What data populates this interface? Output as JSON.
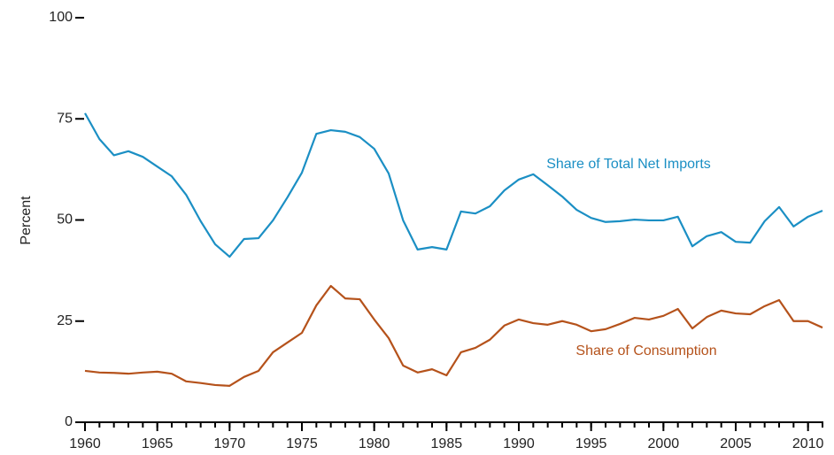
{
  "chart_data": {
    "type": "line",
    "y_label": "Percent",
    "x": [
      1960,
      1961,
      1962,
      1963,
      1964,
      1965,
      1966,
      1967,
      1968,
      1969,
      1970,
      1971,
      1972,
      1973,
      1974,
      1975,
      1976,
      1977,
      1978,
      1979,
      1980,
      1981,
      1982,
      1983,
      1984,
      1985,
      1986,
      1987,
      1988,
      1989,
      1990,
      1991,
      1992,
      1993,
      1994,
      1995,
      1996,
      1997,
      1998,
      1999,
      2000,
      2001,
      2002,
      2003,
      2004,
      2005,
      2006,
      2007,
      2008,
      2009,
      2010,
      2011
    ],
    "series": [
      {
        "name": "Share of Total Net Imports",
        "color": "#1b8fc4",
        "values": [
          76.4,
          70,
          66,
          67,
          65.6,
          63.2,
          60.8,
          56.2,
          49.7,
          44,
          40.9,
          45.3,
          45.5,
          49.9,
          55.6,
          61.7,
          71.3,
          72.2,
          71.8,
          70.5,
          67.6,
          61.5,
          49.9,
          42.7,
          43.3,
          42.7,
          52.1,
          51.6,
          53.4,
          57.3,
          60,
          61.3,
          58.6,
          55.8,
          52.5,
          50.5,
          49.5,
          49.7,
          50.1,
          49.9,
          49.9,
          50.8,
          43.5,
          46,
          47,
          44.6,
          44.4,
          49.7,
          53.2,
          48.4,
          50.8,
          52.3
        ]
      },
      {
        "name": "Share of Consumption",
        "color": "#b5521b",
        "values": [
          12.7,
          12.3,
          12.2,
          12,
          12.3,
          12.5,
          12,
          10.1,
          9.7,
          9.2,
          9,
          11.2,
          12.7,
          17.3,
          19.7,
          22.1,
          28.9,
          33.7,
          30.6,
          30.4,
          25.4,
          20.8,
          14,
          12.3,
          13.1,
          11.6,
          17.3,
          18.4,
          20.4,
          23.9,
          25.4,
          24.5,
          24.1,
          25,
          24.1,
          22.5,
          23,
          24.3,
          25.8,
          25.4,
          26.3,
          28,
          23.2,
          26,
          27.6,
          26.9,
          26.7,
          28.7,
          30.2,
          25,
          25,
          23.4
        ]
      }
    ],
    "xlim": [
      1960,
      2011
    ],
    "xticks": [
      1960,
      1965,
      1970,
      1975,
      1980,
      1985,
      1990,
      1995,
      2000,
      2005,
      2010
    ],
    "ylim": [
      0,
      100
    ],
    "yticks": [
      0,
      25,
      50,
      75,
      100
    ],
    "grid": false
  }
}
